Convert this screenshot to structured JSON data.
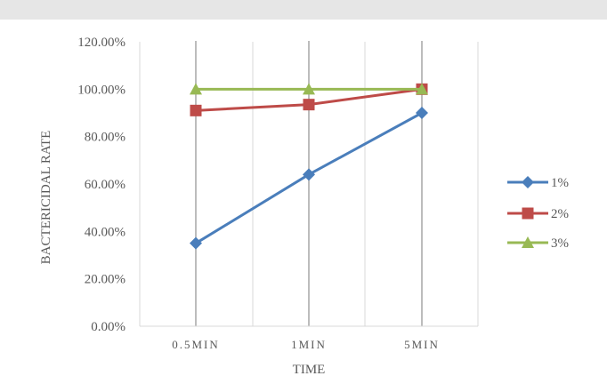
{
  "chart_data": {
    "type": "line",
    "title": "",
    "xlabel": "TIME",
    "ylabel": "BACTERICIDAL RATE",
    "categories": [
      "0.5MIN",
      "1MIN",
      "5MIN"
    ],
    "ylim": [
      0,
      1.2
    ],
    "yticks": [
      "0.00%",
      "20.00%",
      "40.00%",
      "60.00%",
      "80.00%",
      "100.00%",
      "120.00%"
    ],
    "grid": "vertical",
    "legend": "right",
    "series": [
      {
        "name": "1%",
        "values": [
          0.35,
          0.64,
          0.9
        ],
        "color": "#4a7ebb",
        "marker": "diamond"
      },
      {
        "name": "2%",
        "values": [
          0.91,
          0.935,
          1.0
        ],
        "color": "#be4b48",
        "marker": "square"
      },
      {
        "name": "3%",
        "values": [
          1.0,
          1.0,
          1.0
        ],
        "color": "#98b954",
        "marker": "triangle"
      }
    ]
  }
}
